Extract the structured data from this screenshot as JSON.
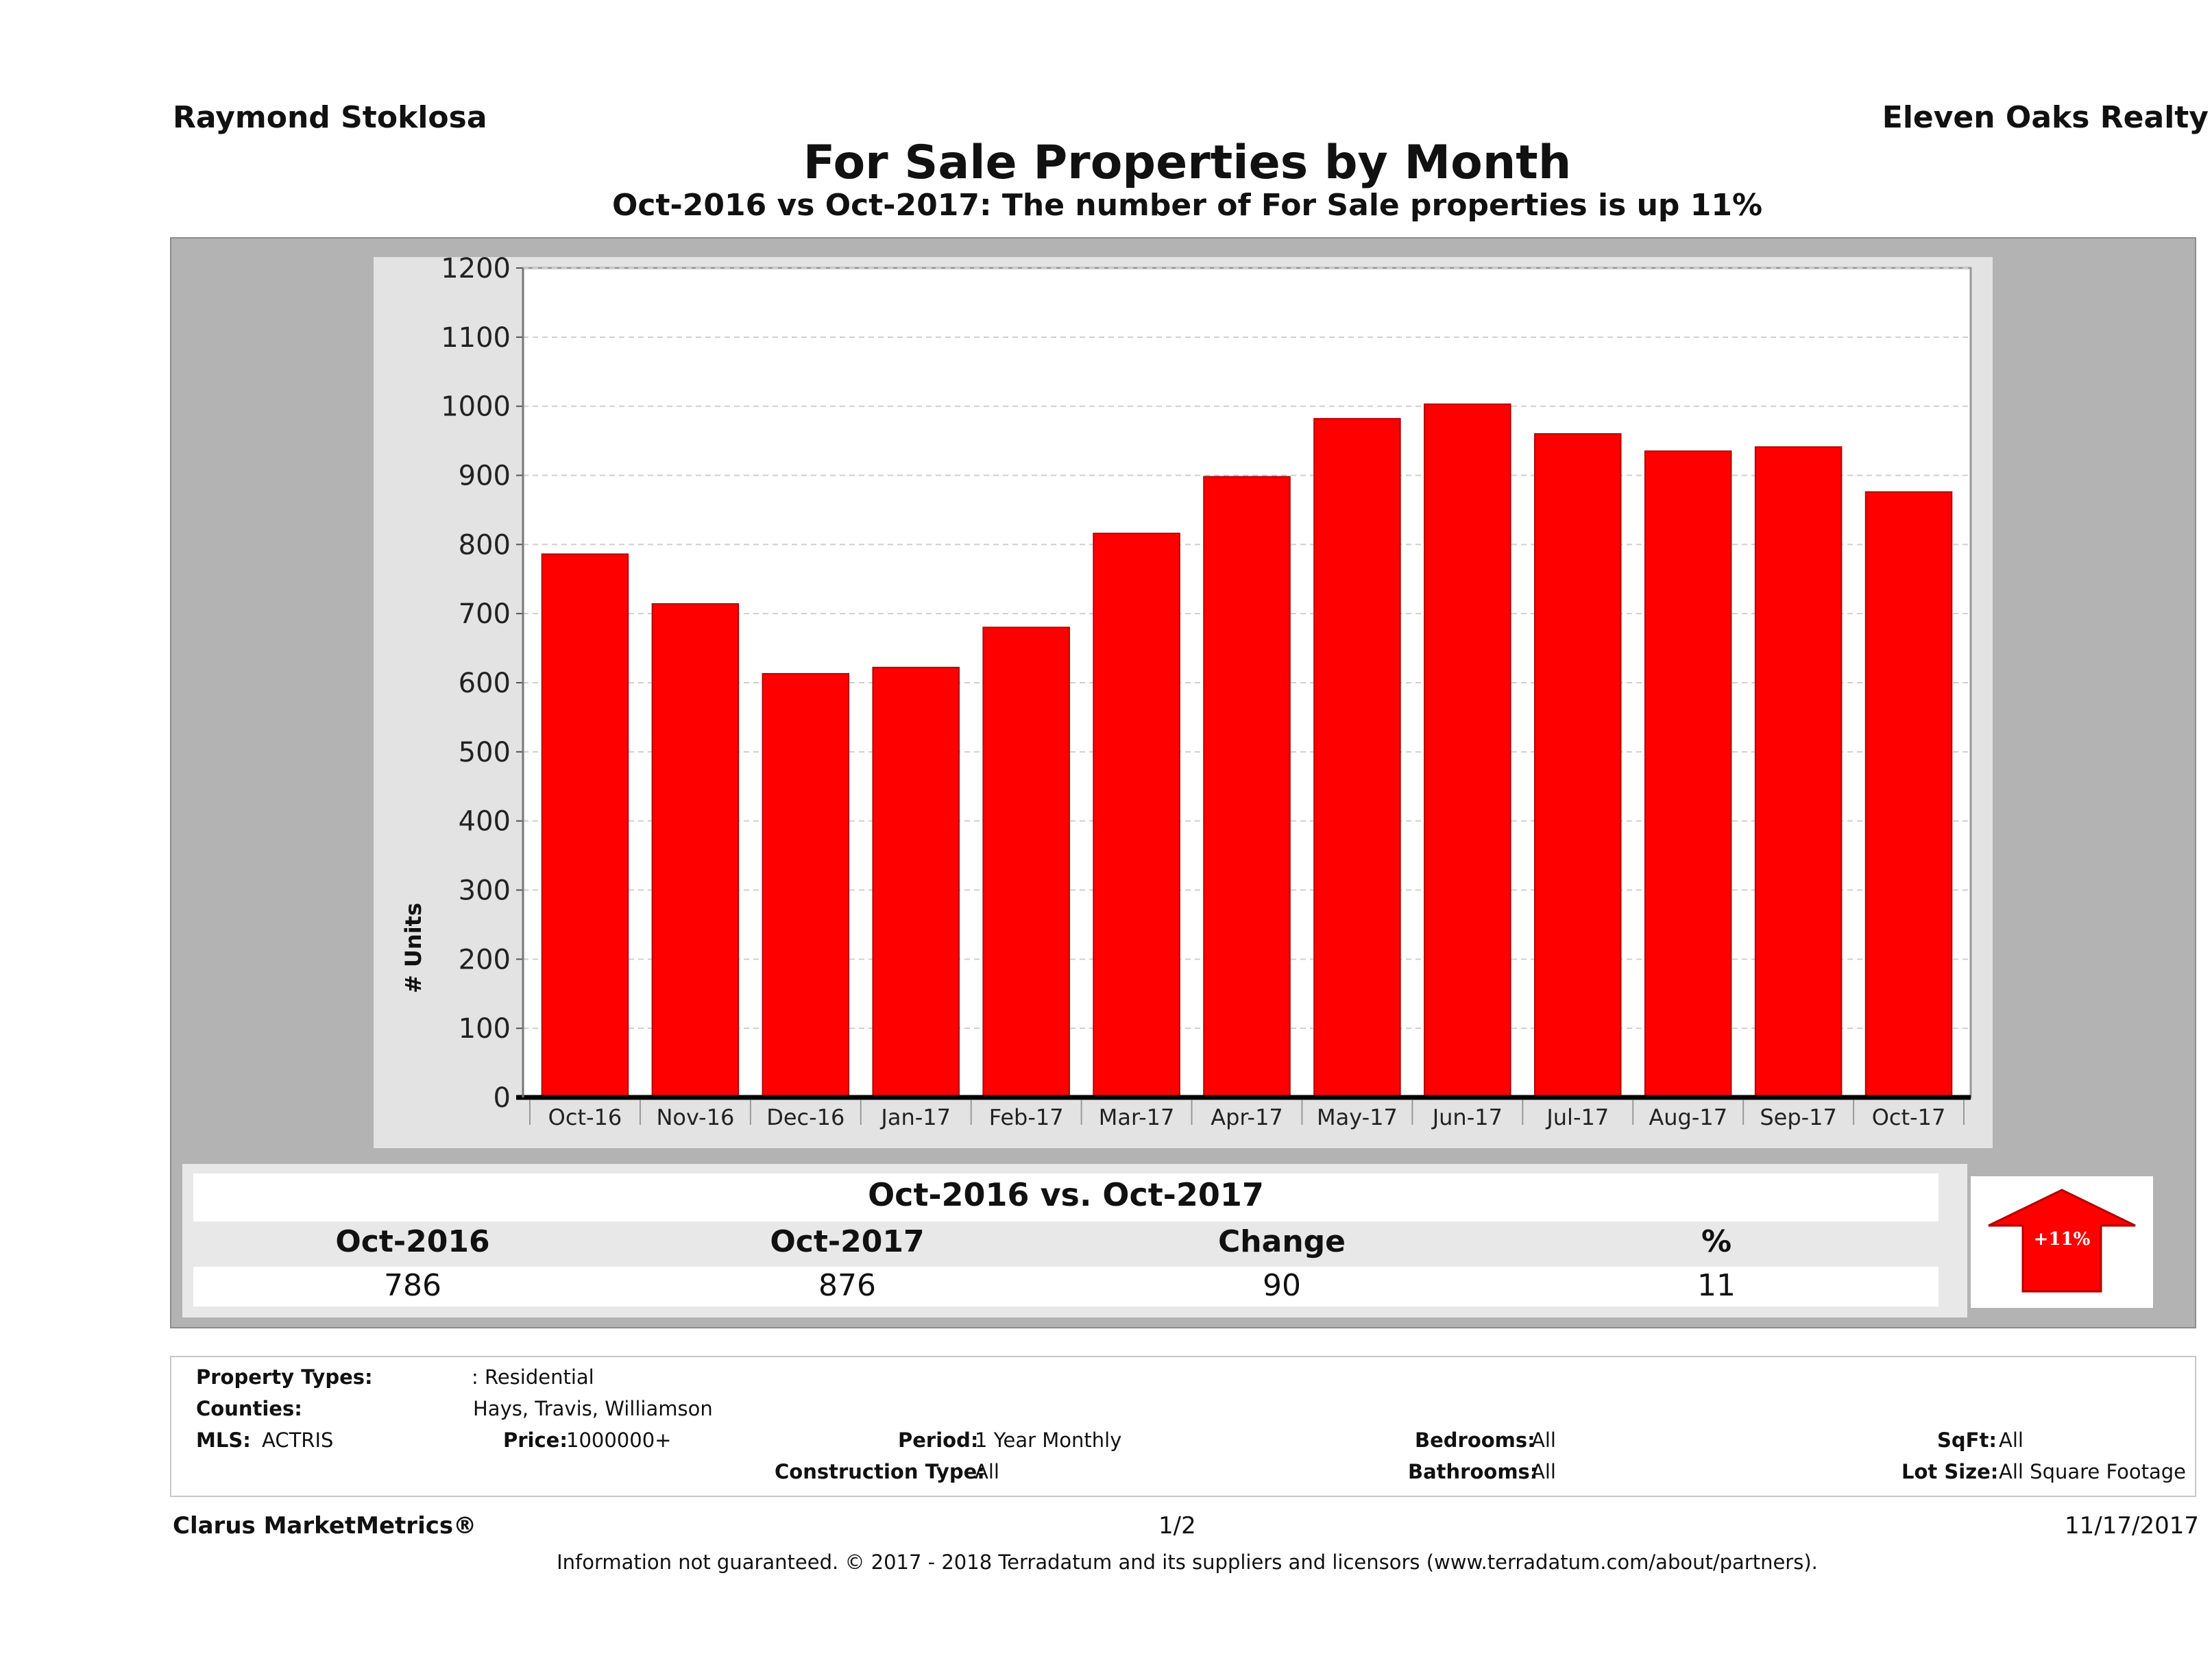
{
  "header": {
    "agent_name": "Raymond Stoklosa",
    "brokerage": "Eleven Oaks Realty"
  },
  "chart_data": {
    "type": "bar",
    "title": "For Sale Properties by Month",
    "subtitle": "Oct-2016 vs Oct-2017: The number of For Sale  properties is up 11%",
    "ylabel": "# Units",
    "xlabel": "",
    "ylim": [
      0,
      1200
    ],
    "yticks": [
      0,
      100,
      200,
      300,
      400,
      500,
      600,
      700,
      800,
      900,
      1000,
      1100,
      1200
    ],
    "categories": [
      "Oct-16",
      "Nov-16",
      "Dec-16",
      "Jan-17",
      "Feb-17",
      "Mar-17",
      "Apr-17",
      "May-17",
      "Jun-17",
      "Jul-17",
      "Aug-17",
      "Sep-17",
      "Oct-17"
    ],
    "values": [
      786,
      714,
      613,
      622,
      680,
      816,
      898,
      982,
      1003,
      960,
      935,
      941,
      876
    ],
    "grid": true,
    "colors": {
      "bar": "#ff0000",
      "bar_edge": "#b30000"
    }
  },
  "summary": {
    "title": "Oct-2016 vs. Oct-2017",
    "headers": [
      "Oct-2016",
      "Oct-2017",
      "Change",
      "%"
    ],
    "values": [
      "786",
      "876",
      "90",
      "11"
    ],
    "badge": "+11%",
    "badge_icon": "up-arrow-icon"
  },
  "criteria": {
    "property_types_label": "Property Types:",
    "property_types_value": ": Residential",
    "counties_label": "Counties:",
    "counties_value": "Hays, Travis, Williamson",
    "mls_label": "MLS:",
    "mls_value": "ACTRIS",
    "price_label": "Price:",
    "price_value": "1000000+",
    "period_label": "Period:",
    "period_value": "1 Year Monthly",
    "construction_label": "Construction Type:",
    "construction_value": "All",
    "bedrooms_label": "Bedrooms:",
    "bedrooms_value": "All",
    "bathrooms_label": "Bathrooms:",
    "bathrooms_value": "All",
    "sqft_label": "SqFt:",
    "sqft_value": "All",
    "lot_label": "Lot Size:",
    "lot_value": "All Square Footage"
  },
  "footer": {
    "brand": "Clarus MarketMetrics®",
    "page": "1/2",
    "date": "11/17/2017",
    "disclaimer": "Information not guaranteed. © 2017 - 2018 Terradatum and its suppliers and licensors (www.terradatum.com/about/partners)."
  }
}
